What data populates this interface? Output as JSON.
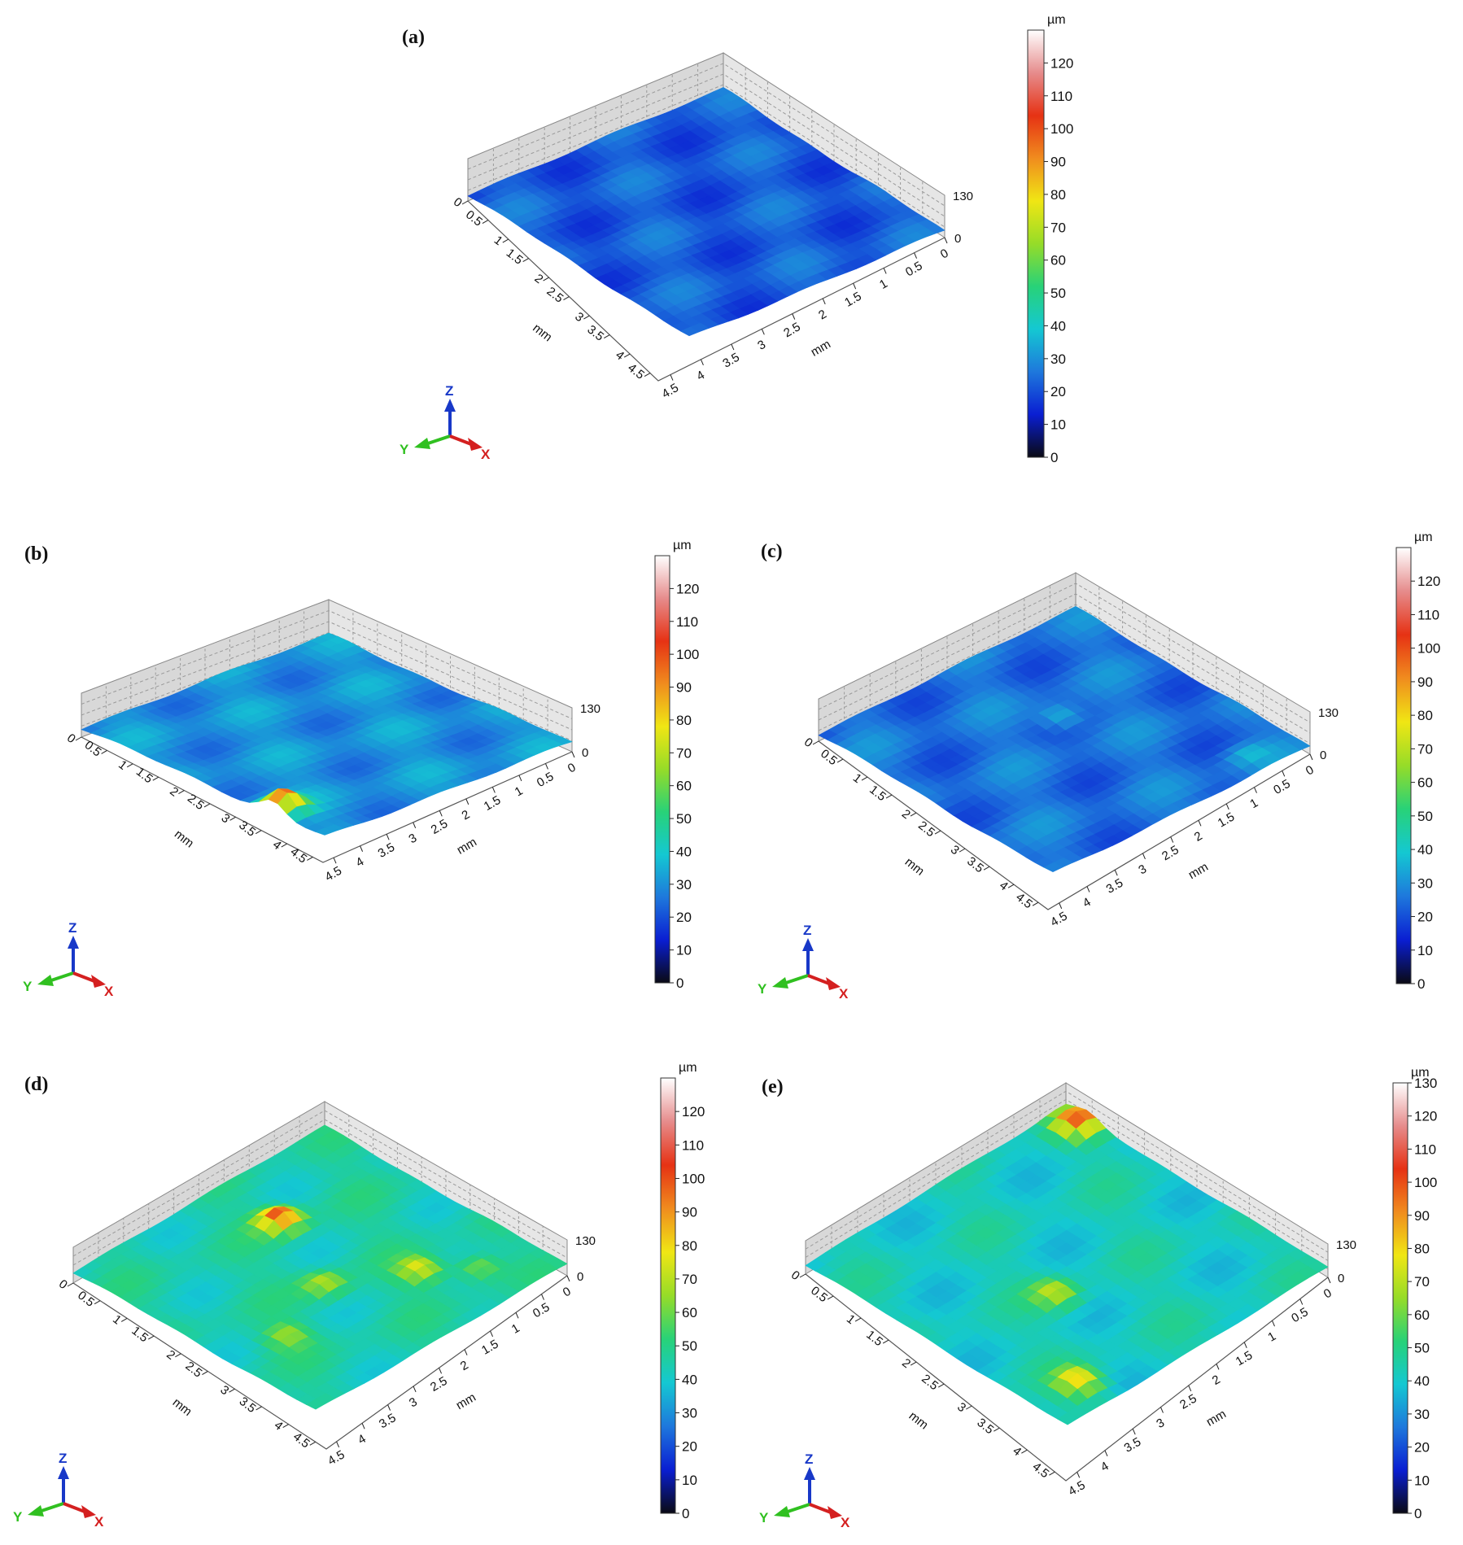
{
  "colors": {
    "colormap": [
      "#0a0a14",
      "#0a1ed2",
      "#1e78dc",
      "#14c8d2",
      "#28d278",
      "#96dc28",
      "#f0e614",
      "#f08c1e",
      "#e63214",
      "#e68c8c",
      "#ffffff"
    ],
    "x_axis": "#d42020",
    "y_axis": "#30c020",
    "z_axis": "#1838c8"
  },
  "axis_indicator": {
    "x": "X",
    "y": "Y",
    "z": "Z"
  },
  "chart_data": [
    {
      "panel": "(a)",
      "type": "surface3d",
      "x_axis": {
        "label": "mm",
        "ticks": [
          "0",
          "0.5",
          "1",
          "1.5",
          "2",
          "2.5",
          "3",
          "3.5",
          "4",
          "4.5"
        ],
        "range": [
          0,
          4.7
        ]
      },
      "y_axis": {
        "label": "mm",
        "ticks": [
          "4.5",
          "4",
          "3.5",
          "3",
          "2.5",
          "2",
          "1.5",
          "1",
          "0.5",
          "0"
        ],
        "range": [
          0,
          4.7
        ]
      },
      "z_axis": {
        "ticks": [
          "0",
          "130"
        ],
        "range": [
          0,
          130
        ]
      },
      "colorbar": {
        "unit": "µm",
        "ticks": [
          "0",
          "10",
          "20",
          "30",
          "40",
          "50",
          "60",
          "70",
          "80",
          "90",
          "100",
          "110",
          "120"
        ],
        "range": [
          0,
          130
        ]
      },
      "base_height": 22,
      "peaks": []
    },
    {
      "panel": "(b)",
      "type": "surface3d",
      "x_axis": {
        "label": "mm",
        "ticks": [
          "0",
          "0.5",
          "1",
          "1.5",
          "2",
          "2.5",
          "3",
          "3.5",
          "4",
          "4.5"
        ],
        "range": [
          0,
          4.7
        ]
      },
      "y_axis": {
        "label": "mm",
        "ticks": [
          "4.5",
          "4",
          "3.5",
          "3",
          "2.5",
          "2",
          "1.5",
          "1",
          "0.5",
          "0"
        ],
        "range": [
          0,
          4.7
        ]
      },
      "z_axis": {
        "ticks": [
          "0",
          "130"
        ],
        "range": [
          0,
          130
        ]
      },
      "colorbar": {
        "unit": "µm",
        "ticks": [
          "0",
          "10",
          "20",
          "30",
          "40",
          "50",
          "60",
          "70",
          "80",
          "90",
          "100",
          "110",
          "120"
        ],
        "range": [
          0,
          130
        ]
      },
      "base_height": 30,
      "peaks": [
        {
          "x": 4.5,
          "y": 1.0,
          "height": 95
        }
      ]
    },
    {
      "panel": "(c)",
      "type": "surface3d",
      "x_axis": {
        "label": "mm",
        "ticks": [
          "0",
          "0.5",
          "1",
          "1.5",
          "2",
          "2.5",
          "3",
          "3.5",
          "4",
          "4.5"
        ],
        "range": [
          0,
          4.7
        ]
      },
      "y_axis": {
        "label": "mm",
        "ticks": [
          "4.5",
          "4",
          "3.5",
          "3",
          "2.5",
          "2",
          "1.5",
          "1",
          "0.5",
          "0"
        ],
        "range": [
          0,
          4.7
        ]
      },
      "z_axis": {
        "ticks": [
          "0",
          "130"
        ],
        "range": [
          0,
          130
        ]
      },
      "colorbar": {
        "unit": "µm",
        "ticks": [
          "0",
          "10",
          "20",
          "30",
          "40",
          "50",
          "60",
          "70",
          "80",
          "90",
          "100",
          "110",
          "120"
        ],
        "range": [
          0,
          130
        ]
      },
      "base_height": 25,
      "peaks": [
        {
          "x": 2.0,
          "y": 2.8,
          "height": 40
        },
        {
          "x": 0.8,
          "y": 0.4,
          "height": 35
        }
      ]
    },
    {
      "panel": "(d)",
      "type": "surface3d",
      "x_axis": {
        "label": "mm",
        "ticks": [
          "0",
          "0.5",
          "1",
          "1.5",
          "2",
          "2.5",
          "3",
          "3.5",
          "4",
          "4.5"
        ],
        "range": [
          0,
          4.7
        ]
      },
      "y_axis": {
        "label": "mm",
        "ticks": [
          "4.5",
          "4",
          "3.5",
          "3",
          "2.5",
          "2",
          "1.5",
          "1",
          "0.5",
          "0"
        ],
        "range": [
          0,
          4.7
        ]
      },
      "z_axis": {
        "ticks": [
          "0",
          "130"
        ],
        "range": [
          0,
          130
        ]
      },
      "colorbar": {
        "unit": "µm",
        "ticks": [
          "0",
          "10",
          "20",
          "30",
          "40",
          "50",
          "60",
          "70",
          "80",
          "90",
          "100",
          "110",
          "120"
        ],
        "range": [
          0,
          130
        ]
      },
      "base_height": 45,
      "peaks": [
        {
          "x": 2.0,
          "y": 3.5,
          "height": 100
        },
        {
          "x": 1.5,
          "y": 1.3,
          "height": 75
        },
        {
          "x": 2.6,
          "y": 2.0,
          "height": 70
        },
        {
          "x": 0.9,
          "y": 0.8,
          "height": 65
        },
        {
          "x": 3.8,
          "y": 1.5,
          "height": 65
        }
      ]
    },
    {
      "panel": "(e)",
      "type": "surface3d",
      "x_axis": {
        "label": "mm",
        "ticks": [
          "0",
          "0.5",
          "1",
          "1.5",
          "2",
          "2.5",
          "3",
          "3.5",
          "4",
          "4.5"
        ],
        "range": [
          0,
          4.7
        ]
      },
      "y_axis": {
        "label": "mm",
        "ticks": [
          "4.5",
          "4",
          "3.5",
          "3",
          "2.5",
          "2",
          "1.5",
          "1",
          "0.5",
          "0"
        ],
        "range": [
          0,
          4.7
        ]
      },
      "z_axis": {
        "ticks": [
          "0",
          "130"
        ],
        "range": [
          0,
          130
        ]
      },
      "colorbar": {
        "unit": "µm",
        "ticks": [
          "0",
          "10",
          "20",
          "30",
          "40",
          "50",
          "60",
          "70",
          "80",
          "90",
          "100",
          "110",
          "120",
          "130"
        ],
        "range": [
          0,
          130
        ]
      },
      "base_height": 42,
      "peaks": [
        {
          "x": 0.2,
          "y": 4.3,
          "height": 95
        },
        {
          "x": 4.0,
          "y": 0.5,
          "height": 80
        },
        {
          "x": 2.9,
          "y": 2.0,
          "height": 70
        }
      ]
    }
  ]
}
